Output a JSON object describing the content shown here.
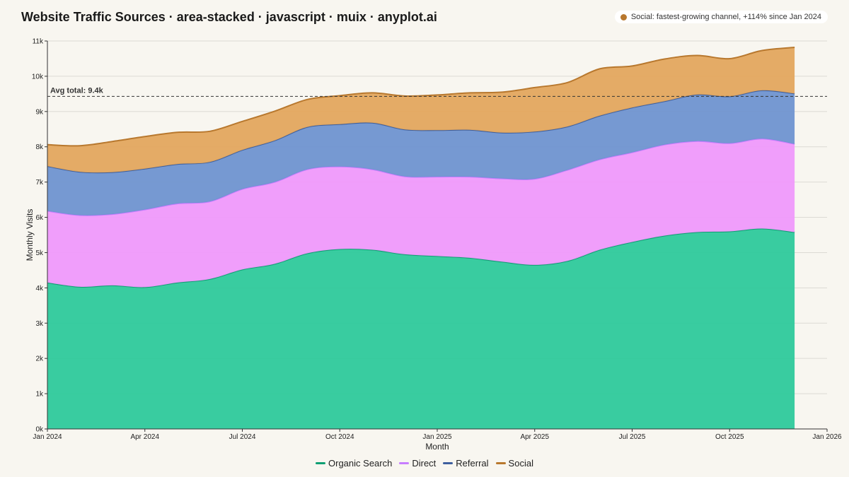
{
  "title": "Website Traffic Sources · area-stacked · javascript · muix · anyplot.ai",
  "annotation": {
    "text": "Social: fastest-growing channel, +114% since Jan 2024",
    "color": "#b8782e"
  },
  "chart_data": {
    "type": "area",
    "stacked": true,
    "xlabel": "Month",
    "ylabel": "Monthly Visits",
    "x": [
      "2024-01",
      "2024-02",
      "2024-03",
      "2024-04",
      "2024-05",
      "2024-06",
      "2024-07",
      "2024-08",
      "2024-09",
      "2024-10",
      "2024-11",
      "2024-12",
      "2025-01",
      "2025-02",
      "2025-03",
      "2025-04",
      "2025-05",
      "2025-06",
      "2025-07",
      "2025-08",
      "2025-09",
      "2025-10",
      "2025-11",
      "2025-12"
    ],
    "xlim": [
      "2024-01",
      "2026-01"
    ],
    "x_ticks": [
      "Jan 2024",
      "Apr 2024",
      "Jul 2024",
      "Oct 2024",
      "Jan 2025",
      "Apr 2025",
      "Jul 2025",
      "Oct 2025",
      "Jan 2026"
    ],
    "ylim": [
      0,
      11000
    ],
    "y_ticks": [
      "0k",
      "1k",
      "2k",
      "3k",
      "4k",
      "5k",
      "6k",
      "7k",
      "8k",
      "9k",
      "10k",
      "11k"
    ],
    "grid": true,
    "legend_position": "bottom-center",
    "series": [
      {
        "name": "Organic Search",
        "color": "#0f9f73",
        "fill": "#2ec99b",
        "values": [
          4150,
          4030,
          4070,
          4020,
          4150,
          4250,
          4520,
          4680,
          4980,
          5100,
          5080,
          4950,
          4900,
          4850,
          4740,
          4650,
          4760,
          5080,
          5300,
          5480,
          5580,
          5600,
          5680,
          5580
        ]
      },
      {
        "name": "Direct",
        "color": "#c77dff",
        "fill": "#ef99fb",
        "values": [
          2030,
          2030,
          2020,
          2200,
          2240,
          2200,
          2280,
          2320,
          2380,
          2340,
          2280,
          2210,
          2250,
          2300,
          2360,
          2440,
          2580,
          2560,
          2540,
          2580,
          2580,
          2500,
          2550,
          2500
        ]
      },
      {
        "name": "Referral",
        "color": "#3e5f9e",
        "fill": "#6f93d0",
        "values": [
          1270,
          1230,
          1190,
          1160,
          1120,
          1120,
          1110,
          1180,
          1200,
          1200,
          1320,
          1330,
          1320,
          1330,
          1300,
          1340,
          1230,
          1240,
          1270,
          1230,
          1320,
          1330,
          1370,
          1430
        ]
      },
      {
        "name": "Social",
        "color": "#b8782e",
        "fill": "#e3a65e",
        "values": [
          610,
          740,
          870,
          910,
          900,
          870,
          810,
          830,
          780,
          810,
          850,
          950,
          1000,
          1050,
          1150,
          1250,
          1250,
          1330,
          1180,
          1200,
          1110,
          1070,
          1130,
          1310
        ]
      }
    ],
    "reference_line": {
      "label": "Avg total: 9.4k",
      "value": 9430
    }
  }
}
